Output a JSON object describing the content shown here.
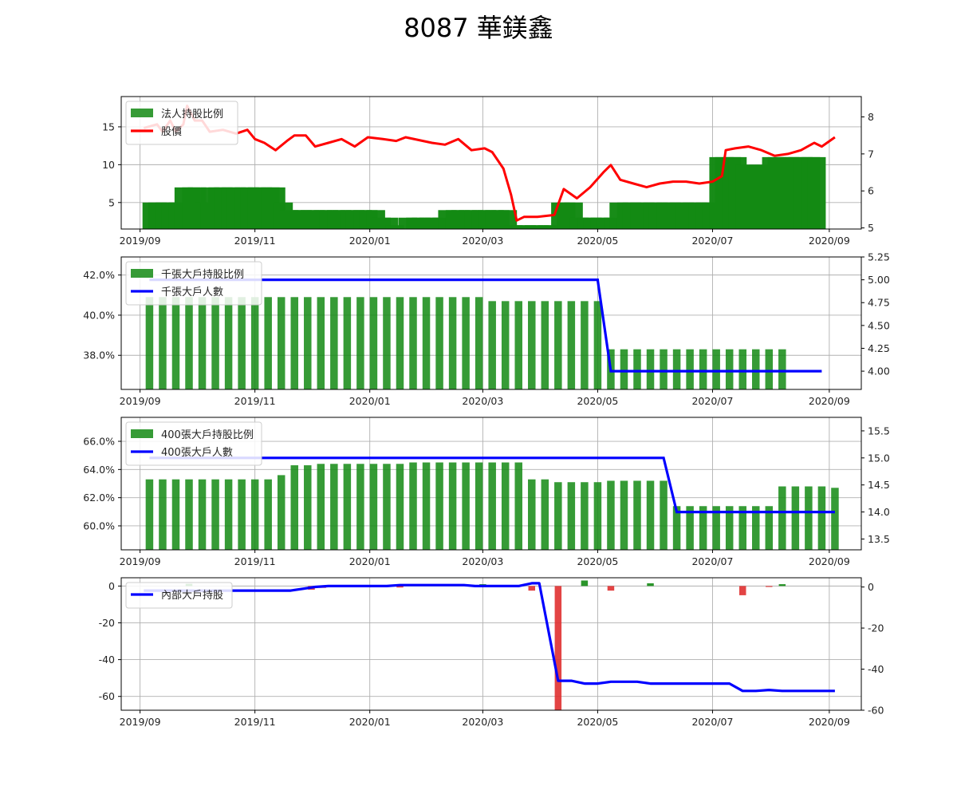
{
  "title": "8087 華鎂鑫",
  "x_ticks": [
    "2019/09",
    "2019/11",
    "2020/01",
    "2020/03",
    "2020/05",
    "2020/07",
    "2020/09"
  ],
  "colors": {
    "bar": "#138a13",
    "price": "#ff0000",
    "holders": "#0000ff",
    "pos": "#138a13",
    "neg": "#e03030"
  },
  "chart_data": [
    {
      "type": "bar+line",
      "legend": [
        "法人持股比例",
        "股價"
      ],
      "y_left_ticks": [
        "5",
        "10",
        "15"
      ],
      "y_left_range": [
        1.5,
        19
      ],
      "y_right_ticks": [
        "5",
        "6",
        "7",
        "8"
      ],
      "y_right_range": [
        4.97,
        8.55
      ],
      "bar_values_by_week": [
        5,
        5,
        5,
        5,
        5,
        7,
        7,
        7,
        5,
        7,
        7,
        7,
        7,
        7,
        7,
        7,
        7,
        7,
        7,
        7,
        5,
        4,
        4,
        4,
        4,
        4,
        4,
        4,
        4,
        4,
        4,
        4,
        4,
        4,
        4,
        3,
        3,
        2,
        0,
        3,
        3,
        3,
        3,
        3,
        3,
        4,
        4,
        4,
        4,
        4,
        4,
        4,
        4,
        4,
        4,
        2,
        2,
        2,
        2,
        2,
        2,
        2,
        5,
        5,
        5,
        3,
        3,
        3,
        3,
        3,
        3,
        5,
        5,
        5,
        5,
        5,
        5,
        5,
        5,
        5,
        5,
        5,
        5,
        5,
        5,
        5,
        11,
        11,
        11,
        11,
        10,
        10,
        10,
        10,
        11,
        11,
        11,
        11,
        11,
        11,
        11,
        11
      ],
      "price_points": [
        [
          "2019-09-03",
          7.7
        ],
        [
          "2019-09-10",
          7.8
        ],
        [
          "2019-09-13",
          7.6
        ],
        [
          "2019-09-17",
          7.9
        ],
        [
          "2019-09-20",
          7.6
        ],
        [
          "2019-09-24",
          7.8
        ],
        [
          "2019-09-26",
          8.3
        ],
        [
          "2019-09-30",
          7.9
        ],
        [
          "2019-10-04",
          7.9
        ],
        [
          "2019-10-08",
          7.6
        ],
        [
          "2019-10-15",
          7.65
        ],
        [
          "2019-10-22",
          7.55
        ],
        [
          "2019-10-28",
          7.65
        ],
        [
          "2019-11-01",
          7.4
        ],
        [
          "2019-11-06",
          7.3
        ],
        [
          "2019-11-12",
          7.1
        ],
        [
          "2019-11-18",
          7.35
        ],
        [
          "2019-11-22",
          7.5
        ],
        [
          "2019-11-28",
          7.5
        ],
        [
          "2019-12-03",
          7.2
        ],
        [
          "2019-12-10",
          7.3
        ],
        [
          "2019-12-17",
          7.4
        ],
        [
          "2019-12-24",
          7.2
        ],
        [
          "2019-12-31",
          7.45
        ],
        [
          "2020-01-08",
          7.4
        ],
        [
          "2020-01-15",
          7.35
        ],
        [
          "2020-01-20",
          7.45
        ],
        [
          "2020-02-03",
          7.3
        ],
        [
          "2020-02-10",
          7.25
        ],
        [
          "2020-02-17",
          7.4
        ],
        [
          "2020-02-24",
          7.1
        ],
        [
          "2020-03-02",
          7.15
        ],
        [
          "2020-03-06",
          7.05
        ],
        [
          "2020-03-12",
          6.6
        ],
        [
          "2020-03-16",
          5.9
        ],
        [
          "2020-03-19",
          5.2
        ],
        [
          "2020-03-23",
          5.3
        ],
        [
          "2020-03-30",
          5.3
        ],
        [
          "2020-04-08",
          5.35
        ],
        [
          "2020-04-13",
          6.05
        ],
        [
          "2020-04-20",
          5.8
        ],
        [
          "2020-04-27",
          6.1
        ],
        [
          "2020-05-04",
          6.5
        ],
        [
          "2020-05-08",
          6.7
        ],
        [
          "2020-05-13",
          6.3
        ],
        [
          "2020-05-20",
          6.2
        ],
        [
          "2020-05-27",
          6.1
        ],
        [
          "2020-06-03",
          6.2
        ],
        [
          "2020-06-10",
          6.25
        ],
        [
          "2020-06-17",
          6.25
        ],
        [
          "2020-06-24",
          6.2
        ],
        [
          "2020-07-01",
          6.25
        ],
        [
          "2020-07-06",
          6.4
        ],
        [
          "2020-07-08",
          7.1
        ],
        [
          "2020-07-13",
          7.15
        ],
        [
          "2020-07-20",
          7.2
        ],
        [
          "2020-07-27",
          7.1
        ],
        [
          "2020-08-03",
          6.95
        ],
        [
          "2020-08-10",
          7.0
        ],
        [
          "2020-08-17",
          7.1
        ],
        [
          "2020-08-24",
          7.3
        ],
        [
          "2020-08-28",
          7.2
        ],
        [
          "2020-09-04",
          7.45
        ]
      ]
    },
    {
      "type": "bar+line",
      "legend": [
        "千張大戶持股比例",
        "千張大戶人數"
      ],
      "y_left_ticks": [
        "38.0%",
        "40.0%",
        "42.0%"
      ],
      "y_left_range": [
        36.3,
        42.9
      ],
      "y_right_ticks": [
        "4.00",
        "4.25",
        "4.50",
        "4.75",
        "5.00",
        "5.25"
      ],
      "y_right_range": [
        3.8,
        5.25
      ],
      "bar_pct_by_week": [
        40.9,
        40.9,
        40.9,
        40.9,
        40.9,
        40.9,
        40.9,
        40.9,
        40.9,
        40.9,
        40.9,
        40.9,
        40.9,
        40.9,
        40.9,
        40.9,
        40.9,
        40.9,
        40.9,
        40.9,
        40.9,
        40.9,
        40.9,
        40.9,
        40.9,
        40.9,
        40.7,
        40.7,
        40.7,
        40.7,
        40.7,
        40.7,
        40.7,
        40.7,
        40.7,
        38.3,
        38.3,
        38.3,
        38.3,
        38.3,
        38.3,
        38.3,
        38.3,
        38.3,
        38.3,
        38.3,
        38.3,
        38.3,
        38.3
      ],
      "holders_series": [
        5,
        5,
        5,
        5,
        5,
        5,
        5,
        5,
        5,
        5,
        5,
        5,
        5,
        5,
        5,
        5,
        5,
        5,
        5,
        5,
        5,
        5,
        5,
        5,
        5,
        5,
        5,
        5,
        5,
        5,
        5,
        5,
        5,
        5,
        5,
        4,
        4,
        4,
        4,
        4,
        4,
        4,
        4,
        4,
        4,
        4,
        4,
        4,
        4,
        4,
        4,
        4
      ]
    },
    {
      "type": "bar+line",
      "legend": [
        "400張大戶持股比例",
        "400張大戶人數"
      ],
      "y_left_ticks": [
        "60.0%",
        "62.0%",
        "64.0%",
        "66.0%"
      ],
      "y_left_range": [
        58.3,
        67.7
      ],
      "y_right_ticks": [
        "13.5",
        "14.0",
        "14.5",
        "15.0",
        "15.5"
      ],
      "y_right_range": [
        13.3,
        15.75
      ],
      "bar_pct_by_week": [
        63.3,
        63.3,
        63.3,
        63.3,
        63.3,
        63.3,
        63.3,
        63.3,
        63.3,
        63.3,
        63.6,
        64.3,
        64.3,
        64.4,
        64.4,
        64.4,
        64.4,
        64.4,
        64.4,
        64.4,
        64.5,
        64.5,
        64.5,
        64.5,
        64.5,
        64.5,
        64.5,
        64.5,
        64.5,
        63.3,
        63.3,
        63.1,
        63.1,
        63.1,
        63.1,
        63.2,
        63.2,
        63.2,
        63.2,
        63.2,
        61.4,
        61.4,
        61.4,
        61.4,
        61.4,
        61.4,
        61.4,
        61.4,
        62.8,
        62.8,
        62.8,
        62.8,
        62.7
      ],
      "holders_series": [
        15,
        15,
        15,
        15,
        15,
        15,
        15,
        15,
        15,
        15,
        15,
        15,
        15,
        15,
        15,
        15,
        15,
        15,
        15,
        15,
        15,
        15,
        15,
        15,
        15,
        15,
        15,
        15,
        15,
        15,
        15,
        15,
        15,
        15,
        15,
        15,
        15,
        15,
        15,
        15,
        14,
        14,
        14,
        14,
        14,
        14,
        14,
        14,
        14,
        14,
        14,
        14,
        14
      ]
    },
    {
      "type": "bar+line",
      "legend": [
        "內部大戶持股"
      ],
      "y_left_ticks": [
        "-60",
        "-40",
        "-20",
        "0"
      ],
      "y_left_range": [
        -67.5,
        4.5
      ],
      "y_right_ticks": [
        "-60",
        "-40",
        "-20",
        "0"
      ],
      "y_right_range": [
        -60,
        4.5
      ],
      "line_points": [
        [
          "2019-09-03",
          -2.5
        ],
        [
          "2019-10-01",
          -2.5
        ],
        [
          "2019-11-20",
          -2.5
        ],
        [
          "2019-12-03",
          -0.5
        ],
        [
          "2019-12-10",
          0
        ],
        [
          "2020-01-10",
          0
        ],
        [
          "2020-01-17",
          0.5
        ],
        [
          "2020-02-20",
          0.5
        ],
        [
          "2020-02-26",
          0
        ],
        [
          "2020-03-20",
          0
        ],
        [
          "2020-03-27",
          1.5
        ],
        [
          "2020-03-31",
          1.5
        ],
        [
          "2020-04-10",
          -51.5
        ],
        [
          "2020-04-17",
          -51.5
        ],
        [
          "2020-04-24",
          -53
        ],
        [
          "2020-05-01",
          -53
        ],
        [
          "2020-05-08",
          -52
        ],
        [
          "2020-05-22",
          -52
        ],
        [
          "2020-05-29",
          -53
        ],
        [
          "2020-06-05",
          -53
        ],
        [
          "2020-07-10",
          -53
        ],
        [
          "2020-07-17",
          -57
        ],
        [
          "2020-07-24",
          -57
        ],
        [
          "2020-07-31",
          -56.5
        ],
        [
          "2020-08-07",
          -57
        ],
        [
          "2020-08-14",
          -57
        ],
        [
          "2020-09-04",
          -57
        ]
      ],
      "bars": [
        [
          "2019-09-27",
          1.2
        ],
        [
          "2019-12-01",
          -2
        ],
        [
          "2019-12-07",
          -1
        ],
        [
          "2020-01-17",
          -0.8
        ],
        [
          "2020-03-01",
          1
        ],
        [
          "2020-03-27",
          -2.5
        ],
        [
          "2020-04-10",
          -68
        ],
        [
          "2020-04-24",
          3
        ],
        [
          "2020-05-08",
          -2.5
        ],
        [
          "2020-05-29",
          1.5
        ],
        [
          "2020-07-17",
          -5
        ],
        [
          "2020-07-31",
          -0.5
        ],
        [
          "2020-08-07",
          1
        ]
      ]
    }
  ]
}
